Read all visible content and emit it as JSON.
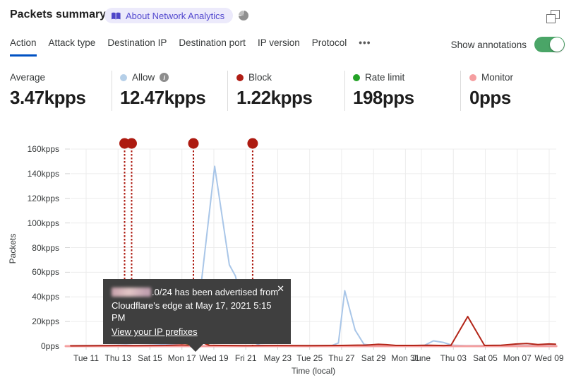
{
  "header": {
    "title": "Packets summary",
    "about_badge_label": "About Network Analytics"
  },
  "tabs": {
    "items": [
      {
        "label": "Action",
        "active": true
      },
      {
        "label": "Attack type",
        "active": false
      },
      {
        "label": "Destination IP",
        "active": false
      },
      {
        "label": "Destination port",
        "active": false
      },
      {
        "label": "IP version",
        "active": false
      },
      {
        "label": "Protocol",
        "active": false
      },
      {
        "label": "•••",
        "active": false
      }
    ]
  },
  "annotations_toggle": {
    "label": "Show annotations",
    "on": true
  },
  "stats": [
    {
      "label": "Average",
      "value": "3.47kpps"
    },
    {
      "label": "Allow",
      "value": "12.47kpps",
      "dot_color": "#b5cfe8",
      "info": true
    },
    {
      "label": "Block",
      "value": "1.22kpps",
      "dot_color": "#b01e15"
    },
    {
      "label": "Rate limit",
      "value": "198pps",
      "dot_color": "#23a226"
    },
    {
      "label": "Monitor",
      "value": "0pps",
      "dot_color": "#f59ea0"
    }
  ],
  "tooltip": {
    "line1": ".0/24 has been advertised from",
    "line2": "Cloudflare's edge at May 17, 2021 5:15 PM",
    "link": "View your IP prefixes",
    "close": "✕"
  },
  "chart_data": {
    "type": "line",
    "xlabel": "Time (local)",
    "ylabel": "Packets",
    "y_unit": "kpps",
    "ylim": [
      0,
      160
    ],
    "x_unit": "days since Tue May 11 2021",
    "grid": true,
    "yticks": [
      {
        "v": 0,
        "label": "0pps"
      },
      {
        "v": 20,
        "label": "20kpps"
      },
      {
        "v": 40,
        "label": "40kpps"
      },
      {
        "v": 60,
        "label": "60kpps"
      },
      {
        "v": 80,
        "label": "80kpps"
      },
      {
        "v": 100,
        "label": "100kpps"
      },
      {
        "v": 120,
        "label": "120kpps"
      },
      {
        "v": 140,
        "label": "140kpps"
      },
      {
        "v": 160,
        "label": "160kpps"
      }
    ],
    "xticks": [
      {
        "t": 0,
        "label": "Tue 11"
      },
      {
        "t": 2,
        "label": "Thu 13"
      },
      {
        "t": 4,
        "label": "Sat 15"
      },
      {
        "t": 6,
        "label": "Mon 17"
      },
      {
        "t": 8,
        "label": "Wed 19"
      },
      {
        "t": 10,
        "label": "Fri 21"
      },
      {
        "t": 12,
        "label": "May 23"
      },
      {
        "t": 14,
        "label": "Tue 25"
      },
      {
        "t": 16,
        "label": "Thu 27"
      },
      {
        "t": 18,
        "label": "Sat 29"
      },
      {
        "t": 20,
        "label": "Mon 31"
      },
      {
        "t": 21,
        "label": "June"
      },
      {
        "t": 23,
        "label": "Thu 03"
      },
      {
        "t": 25,
        "label": "Sat 05"
      },
      {
        "t": 27,
        "label": "Mon 07"
      },
      {
        "t": 29,
        "label": "Wed 09"
      }
    ],
    "series": [
      {
        "name": "Allow",
        "color": "#a9c6e8",
        "width": 2,
        "points": [
          [
            -0.97,
            0.3
          ],
          [
            0,
            0.4
          ],
          [
            1,
            0.5
          ],
          [
            2,
            0.7
          ],
          [
            2.5,
            0.9
          ],
          [
            3,
            0.5
          ],
          [
            4,
            0.8
          ],
          [
            5,
            1.3
          ],
          [
            6,
            2.4
          ],
          [
            6.6,
            3.2
          ],
          [
            6.9,
            4
          ],
          [
            7.2,
            50
          ],
          [
            8.05,
            146
          ],
          [
            8.97,
            66
          ],
          [
            9.35,
            57
          ],
          [
            10.3,
            4
          ],
          [
            10.9,
            0.7
          ],
          [
            11.5,
            0.4
          ],
          [
            13,
            0.3
          ],
          [
            14.5,
            0.4
          ],
          [
            15.4,
            0.6
          ],
          [
            15.8,
            2.5
          ],
          [
            16.2,
            45
          ],
          [
            16.85,
            13
          ],
          [
            17.4,
            1.5
          ],
          [
            18,
            0.5
          ],
          [
            19.5,
            0.4
          ],
          [
            20.5,
            0.5
          ],
          [
            21.2,
            0.7
          ],
          [
            21.75,
            4.3
          ],
          [
            22.35,
            3.1
          ],
          [
            22.9,
            0.8
          ],
          [
            23.8,
            0.4
          ],
          [
            25,
            0.5
          ],
          [
            26.2,
            0.7
          ],
          [
            27.2,
            0.5
          ],
          [
            28.2,
            0.6
          ],
          [
            29.4,
            0.5
          ]
        ]
      },
      {
        "name": "Rate limit",
        "color": "#389b38",
        "width": 2,
        "points": [
          [
            -0.97,
            0.15
          ],
          [
            3,
            0.15
          ],
          [
            5.8,
            0.2
          ],
          [
            6.4,
            1.2
          ],
          [
            7.07,
            5.3
          ],
          [
            7.75,
            0.5
          ],
          [
            8.3,
            0.2
          ],
          [
            12,
            0.12
          ],
          [
            16,
            0.15
          ],
          [
            20,
            0.1
          ],
          [
            24,
            0.1
          ],
          [
            29.4,
            0.12
          ]
        ]
      },
      {
        "name": "Monitor",
        "color": "#f5a0a0",
        "width": 3,
        "points": [
          [
            -1.28,
            0
          ],
          [
            29.45,
            0
          ]
        ]
      },
      {
        "name": "Block",
        "color": "#b32518",
        "width": 2,
        "points": [
          [
            -0.97,
            0.3
          ],
          [
            1,
            0.4
          ],
          [
            2,
            0.5
          ],
          [
            3,
            0.4
          ],
          [
            4,
            0.5
          ],
          [
            5,
            0.6
          ],
          [
            6,
            1
          ],
          [
            6.4,
            0.8
          ],
          [
            7.07,
            4
          ],
          [
            7.7,
            0.7
          ],
          [
            8.5,
            0.6
          ],
          [
            10,
            0.4
          ],
          [
            12,
            0.5
          ],
          [
            14,
            0.4
          ],
          [
            16,
            0.6
          ],
          [
            17,
            0.8
          ],
          [
            17.5,
            0.8
          ],
          [
            18.3,
            1.5
          ],
          [
            18.8,
            1.2
          ],
          [
            19.4,
            0.6
          ],
          [
            20.5,
            0.6
          ],
          [
            21.5,
            0.7
          ],
          [
            22.4,
            0.5
          ],
          [
            22.85,
            0.7
          ],
          [
            23.9,
            24
          ],
          [
            24.95,
            0.6
          ],
          [
            26,
            0.7
          ],
          [
            26.9,
            1.7
          ],
          [
            27.6,
            2.1
          ],
          [
            28.3,
            1.3
          ],
          [
            29,
            1.8
          ],
          [
            29.4,
            1.6
          ]
        ]
      }
    ],
    "annotations": {
      "color": "#ad1a10",
      "events": [
        {
          "t": 2.41
        },
        {
          "t": 2.85
        },
        {
          "t": 6.72,
          "selected": true
        },
        {
          "t": 10.43
        }
      ]
    }
  }
}
